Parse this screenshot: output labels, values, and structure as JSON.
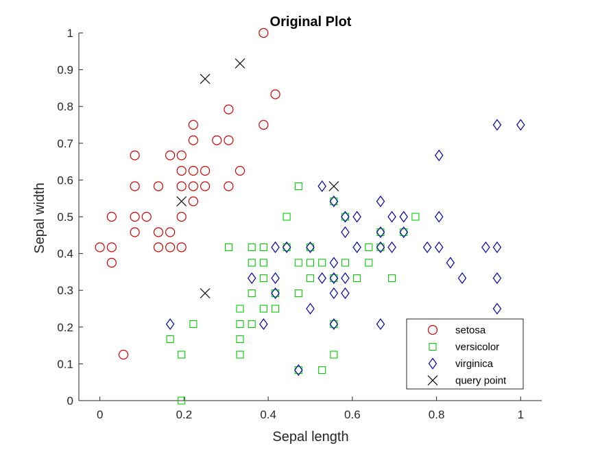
{
  "chart_data": {
    "type": "scatter",
    "title": "Original Plot",
    "xlabel": "Sepal length",
    "ylabel": "Sepal width",
    "xlim": [
      -0.05,
      1.05
    ],
    "ylim": [
      0,
      1
    ],
    "xticks": [
      "0",
      "0.2",
      "0.4",
      "0.6",
      "0.8",
      "1"
    ],
    "xtick_values": [
      0,
      0.2,
      0.4,
      0.6,
      0.8,
      1
    ],
    "yticks": [
      "0",
      "0.1",
      "0.2",
      "0.3",
      "0.4",
      "0.5",
      "0.6",
      "0.7",
      "0.8",
      "0.9",
      "1"
    ],
    "ytick_values": [
      0,
      0.1,
      0.2,
      0.3,
      0.4,
      0.5,
      0.6,
      0.7,
      0.8,
      0.9,
      1
    ],
    "grid": false,
    "legend_position": "bottom-right",
    "series": [
      {
        "name": "setosa",
        "marker": "circle",
        "color": "#cc0000",
        "points": [
          [
            0.389,
            1.0
          ],
          [
            0.417,
            0.833
          ],
          [
            0.306,
            0.792
          ],
          [
            0.389,
            0.75
          ],
          [
            0.222,
            0.75
          ],
          [
            0.222,
            0.708
          ],
          [
            0.278,
            0.708
          ],
          [
            0.306,
            0.708
          ],
          [
            0.083,
            0.667
          ],
          [
            0.167,
            0.667
          ],
          [
            0.194,
            0.667
          ],
          [
            0.194,
            0.625
          ],
          [
            0.222,
            0.625
          ],
          [
            0.25,
            0.625
          ],
          [
            0.333,
            0.625
          ],
          [
            0.083,
            0.583
          ],
          [
            0.139,
            0.583
          ],
          [
            0.194,
            0.583
          ],
          [
            0.222,
            0.583
          ],
          [
            0.25,
            0.583
          ],
          [
            0.306,
            0.583
          ],
          [
            0.222,
            0.542
          ],
          [
            0.028,
            0.5
          ],
          [
            0.083,
            0.5
          ],
          [
            0.111,
            0.5
          ],
          [
            0.194,
            0.5
          ],
          [
            0.083,
            0.458
          ],
          [
            0.139,
            0.458
          ],
          [
            0.167,
            0.458
          ],
          [
            0.0,
            0.417
          ],
          [
            0.028,
            0.417
          ],
          [
            0.139,
            0.417
          ],
          [
            0.167,
            0.417
          ],
          [
            0.194,
            0.417
          ],
          [
            0.028,
            0.375
          ],
          [
            0.056,
            0.125
          ]
        ]
      },
      {
        "name": "versicolor",
        "marker": "square",
        "color": "#00cc00",
        "points": [
          [
            0.472,
            0.583
          ],
          [
            0.556,
            0.542
          ],
          [
            0.444,
            0.5
          ],
          [
            0.583,
            0.5
          ],
          [
            0.75,
            0.5
          ],
          [
            0.667,
            0.458
          ],
          [
            0.722,
            0.458
          ],
          [
            0.306,
            0.417
          ],
          [
            0.361,
            0.417
          ],
          [
            0.389,
            0.417
          ],
          [
            0.444,
            0.417
          ],
          [
            0.5,
            0.417
          ],
          [
            0.639,
            0.417
          ],
          [
            0.667,
            0.417
          ],
          [
            0.361,
            0.375
          ],
          [
            0.389,
            0.375
          ],
          [
            0.472,
            0.375
          ],
          [
            0.5,
            0.375
          ],
          [
            0.528,
            0.375
          ],
          [
            0.583,
            0.375
          ],
          [
            0.639,
            0.375
          ],
          [
            0.389,
            0.333
          ],
          [
            0.5,
            0.333
          ],
          [
            0.556,
            0.333
          ],
          [
            0.611,
            0.333
          ],
          [
            0.694,
            0.333
          ],
          [
            0.361,
            0.292
          ],
          [
            0.417,
            0.292
          ],
          [
            0.472,
            0.292
          ],
          [
            0.333,
            0.25
          ],
          [
            0.389,
            0.25
          ],
          [
            0.417,
            0.25
          ],
          [
            0.222,
            0.208
          ],
          [
            0.333,
            0.208
          ],
          [
            0.361,
            0.208
          ],
          [
            0.556,
            0.208
          ],
          [
            0.167,
            0.167
          ],
          [
            0.333,
            0.167
          ],
          [
            0.194,
            0.125
          ],
          [
            0.333,
            0.125
          ],
          [
            0.556,
            0.125
          ],
          [
            0.472,
            0.083
          ],
          [
            0.528,
            0.083
          ],
          [
            0.194,
            0.0
          ]
        ]
      },
      {
        "name": "virginica",
        "marker": "diamond",
        "color": "#0000aa",
        "points": [
          [
            0.944,
            0.75
          ],
          [
            1.0,
            0.75
          ],
          [
            0.806,
            0.667
          ],
          [
            0.528,
            0.583
          ],
          [
            0.556,
            0.542
          ],
          [
            0.667,
            0.542
          ],
          [
            0.583,
            0.5
          ],
          [
            0.611,
            0.5
          ],
          [
            0.694,
            0.5
          ],
          [
            0.722,
            0.5
          ],
          [
            0.806,
            0.5
          ],
          [
            0.583,
            0.458
          ],
          [
            0.667,
            0.458
          ],
          [
            0.722,
            0.458
          ],
          [
            0.417,
            0.417
          ],
          [
            0.444,
            0.417
          ],
          [
            0.5,
            0.417
          ],
          [
            0.611,
            0.417
          ],
          [
            0.667,
            0.417
          ],
          [
            0.694,
            0.417
          ],
          [
            0.778,
            0.417
          ],
          [
            0.806,
            0.417
          ],
          [
            0.917,
            0.417
          ],
          [
            0.944,
            0.417
          ],
          [
            0.556,
            0.375
          ],
          [
            0.833,
            0.375
          ],
          [
            0.361,
            0.333
          ],
          [
            0.417,
            0.333
          ],
          [
            0.528,
            0.333
          ],
          [
            0.556,
            0.333
          ],
          [
            0.583,
            0.333
          ],
          [
            0.861,
            0.333
          ],
          [
            0.944,
            0.333
          ],
          [
            0.417,
            0.292
          ],
          [
            0.556,
            0.292
          ],
          [
            0.583,
            0.292
          ],
          [
            0.5,
            0.25
          ],
          [
            0.944,
            0.25
          ],
          [
            0.167,
            0.208
          ],
          [
            0.389,
            0.208
          ],
          [
            0.556,
            0.208
          ],
          [
            0.667,
            0.208
          ],
          [
            0.472,
            0.083
          ]
        ]
      },
      {
        "name": "query point",
        "marker": "x",
        "color": "#000000",
        "points": [
          [
            0.333,
            0.917
          ],
          [
            0.25,
            0.875
          ],
          [
            0.556,
            0.583
          ],
          [
            0.194,
            0.542
          ],
          [
            0.25,
            0.292
          ]
        ]
      }
    ]
  }
}
